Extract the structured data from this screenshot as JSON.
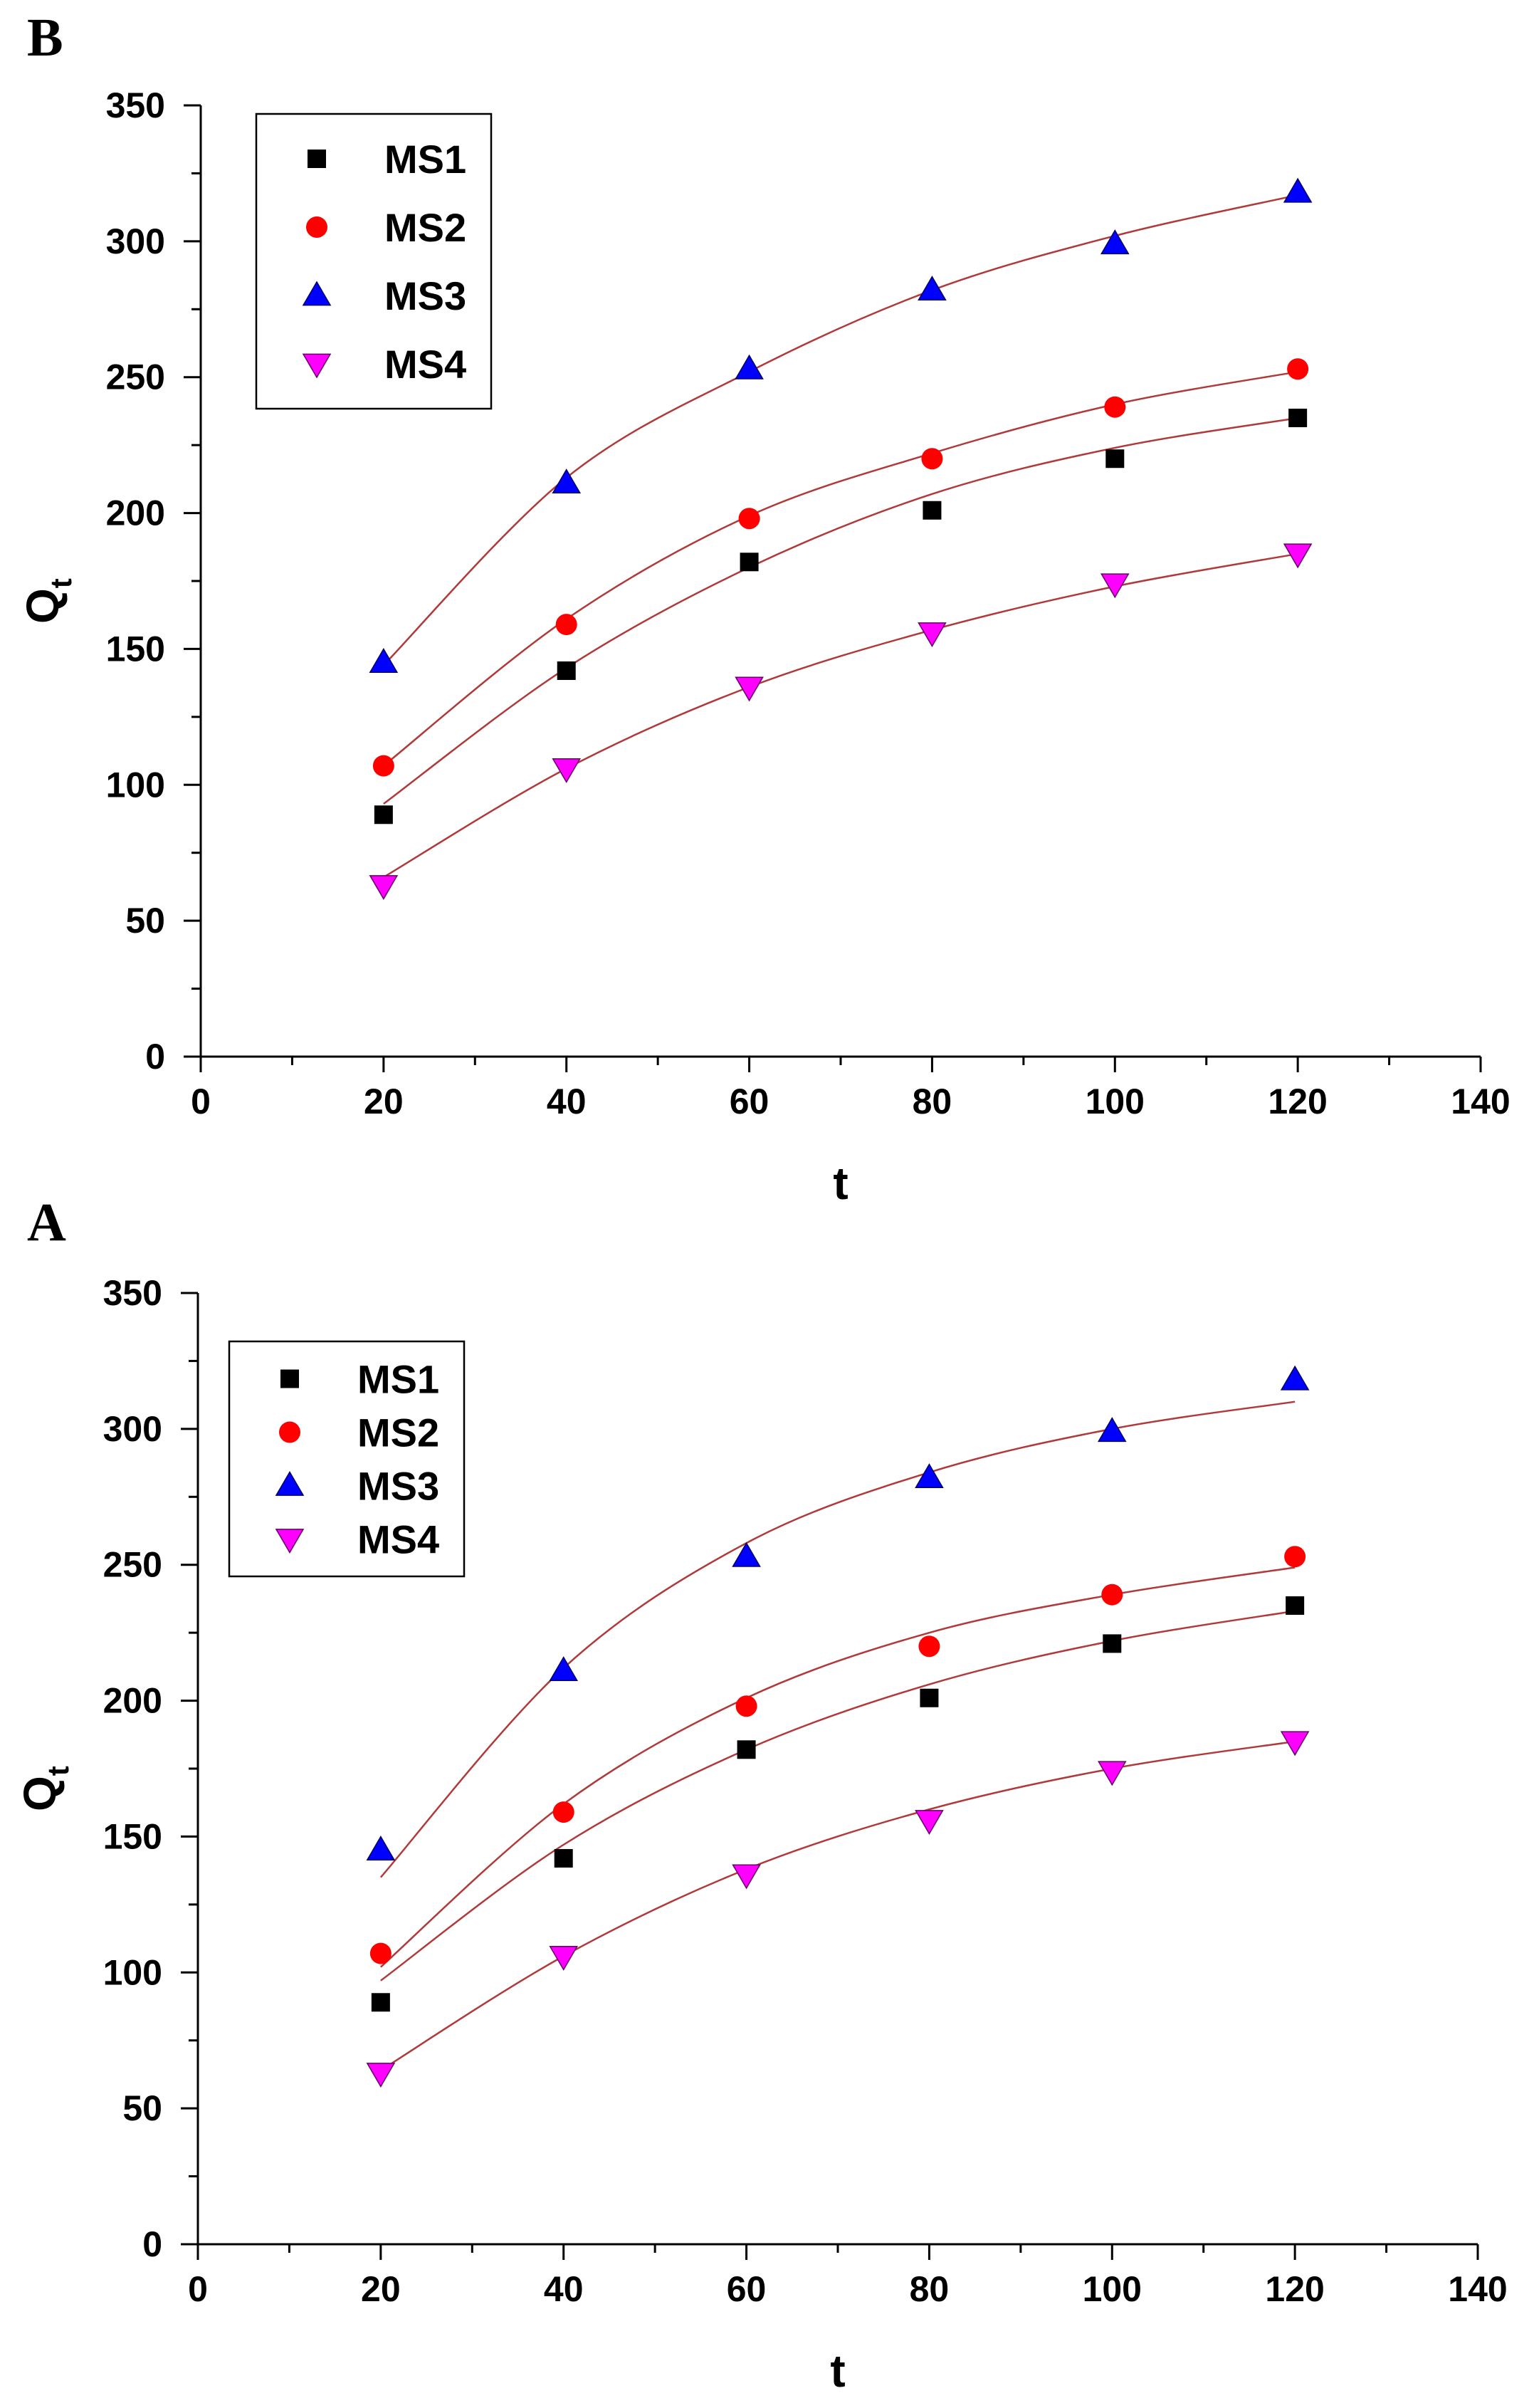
{
  "chart_data": [
    {
      "panel_label": "B",
      "type": "scatter",
      "xlabel": "t",
      "ylabel": "Q",
      "ylabel_subscript": "t",
      "xlim": [
        0,
        140
      ],
      "ylim": [
        0,
        350
      ],
      "xticks": [
        0,
        20,
        40,
        60,
        80,
        100,
        120,
        140
      ],
      "yticks": [
        0,
        50,
        100,
        150,
        200,
        250,
        300,
        350
      ],
      "x_tick_labels": [
        "0",
        "20",
        "40",
        "60",
        "80",
        "100",
        "120",
        "140"
      ],
      "y_tick_labels": [
        "0",
        "50",
        "100",
        "150",
        "200",
        "250",
        "300",
        "350"
      ],
      "legend_position": "top-left",
      "fit_line_color": "#b03a3a",
      "series": [
        {
          "name": "MS1",
          "marker": "square",
          "color": "#000000",
          "x": [
            20,
            40,
            60,
            80,
            100,
            120
          ],
          "values": [
            89,
            142,
            182,
            201,
            220,
            235
          ],
          "fit": [
            93,
            143,
            180,
            207,
            224,
            235
          ]
        },
        {
          "name": "MS2",
          "marker": "circle",
          "color": "#ff0000",
          "x": [
            20,
            40,
            60,
            80,
            100,
            120
          ],
          "values": [
            107,
            159,
            198,
            220,
            239,
            253
          ],
          "fit": [
            107,
            161,
            199,
            222,
            240,
            252
          ]
        },
        {
          "name": "MS3",
          "marker": "triangle-up",
          "color": "#0000ff",
          "x": [
            20,
            40,
            60,
            80,
            100,
            120
          ],
          "values": [
            145,
            211,
            253,
            282,
            299,
            318
          ],
          "fit": [
            144,
            213,
            252,
            282,
            302,
            317
          ]
        },
        {
          "name": "MS4",
          "marker": "triangle-down",
          "color": "#ff00ff",
          "x": [
            20,
            40,
            60,
            80,
            100,
            120
          ],
          "values": [
            63,
            106,
            136,
            156,
            174,
            185
          ],
          "fit": [
            66,
            106,
            136,
            157,
            173,
            185
          ]
        }
      ]
    },
    {
      "panel_label": "A",
      "type": "scatter",
      "xlabel": "t",
      "ylabel": "Q",
      "ylabel_subscript": "t",
      "xlim": [
        0,
        140
      ],
      "ylim": [
        0,
        350
      ],
      "xticks": [
        0,
        20,
        40,
        60,
        80,
        100,
        120,
        140
      ],
      "yticks": [
        0,
        50,
        100,
        150,
        200,
        250,
        300,
        350
      ],
      "x_tick_labels": [
        "0",
        "20",
        "40",
        "60",
        "80",
        "100",
        "120",
        "140"
      ],
      "y_tick_labels": [
        "0",
        "50",
        "100",
        "150",
        "200",
        "250",
        "300",
        "350"
      ],
      "legend_position": "top-left",
      "fit_line_color": "#b03a3a",
      "series": [
        {
          "name": "MS1",
          "marker": "square",
          "color": "#000000",
          "x": [
            20,
            40,
            60,
            80,
            100,
            120
          ],
          "values": [
            89,
            142,
            182,
            201,
            221,
            235
          ],
          "fit": [
            97,
            147,
            182,
            206,
            222,
            233
          ]
        },
        {
          "name": "MS2",
          "marker": "circle",
          "color": "#ff0000",
          "x": [
            20,
            40,
            60,
            80,
            100,
            120
          ],
          "values": [
            107,
            159,
            198,
            220,
            239,
            253
          ],
          "fit": [
            102,
            162,
            201,
            225,
            239,
            249
          ]
        },
        {
          "name": "MS3",
          "marker": "triangle-up",
          "color": "#0000ff",
          "x": [
            20,
            40,
            60,
            80,
            100,
            120
          ],
          "values": [
            145,
            211,
            253,
            282,
            299,
            318
          ],
          "fit": [
            135,
            212,
            258,
            284,
            300,
            310
          ]
        },
        {
          "name": "MS4",
          "marker": "triangle-down",
          "color": "#ff00ff",
          "x": [
            20,
            40,
            60,
            80,
            100,
            120
          ],
          "values": [
            63,
            106,
            136,
            156,
            174,
            185
          ],
          "fit": [
            64,
            106,
            138,
            160,
            175,
            185
          ]
        }
      ]
    }
  ]
}
